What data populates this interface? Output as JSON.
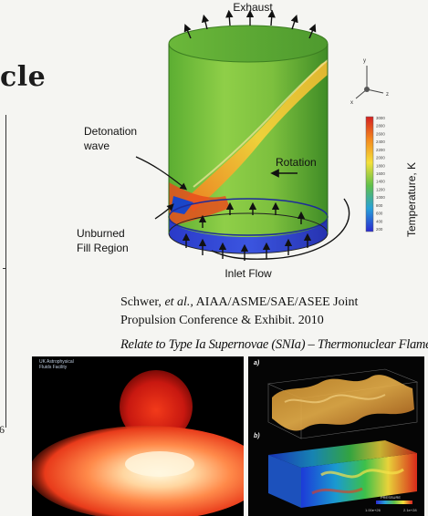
{
  "title_fragment": "cle",
  "plot_edge": {
    "tick_label": "6"
  },
  "diagram": {
    "labels": {
      "exhaust": "Exhaust",
      "detonation_line1": "Detonation",
      "detonation_line2": "wave",
      "rotation": "Rotation",
      "unburned_line1": "Unburned",
      "unburned_line2": "Fill Region",
      "inlet": "Inlet Flow"
    },
    "axes": {
      "x": "x",
      "y": "y",
      "z": "z"
    },
    "colorbar": {
      "title": "Temperature, K",
      "ticks": [
        "3000",
        "2800",
        "2600",
        "2400",
        "2200",
        "2000",
        "1800",
        "1600",
        "1400",
        "1200",
        "1000",
        "800",
        "600",
        "400",
        "200"
      ]
    }
  },
  "citation": {
    "line1_authors": "Schwer, ",
    "line1_etal": "et al.,",
    "line1_rest": " AIAA/ASME/SAE/ASEE Joint",
    "line2": "Propulsion Conference & Exhibit. 2010"
  },
  "caption": "Relate to Type Ia Supernovae (SNIa) – Thermonuclear Flames",
  "sim_left": {
    "logo_line1": "UK Astrophysical",
    "logo_line2": "Fluids Facility"
  },
  "sim_right": {
    "label_a": "a)",
    "label_b": "b)",
    "colorbar_title": "PRESSURE",
    "colorbar_min": "1.00e+26",
    "colorbar_max": "2.1e+28"
  }
}
